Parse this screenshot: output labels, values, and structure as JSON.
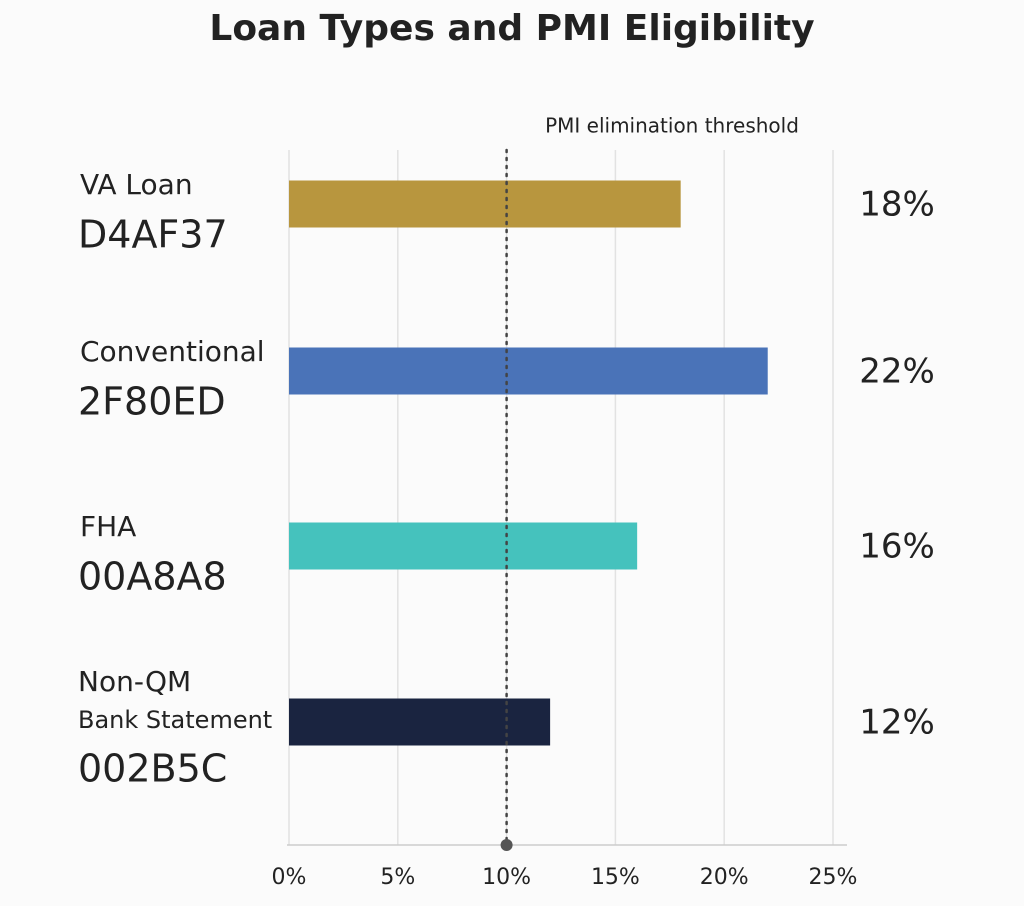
{
  "chart_data": {
    "type": "bar",
    "orientation": "horizontal",
    "title": "Loan Types and PMI Eligibility",
    "categories": [
      "VA Loan",
      "Conventional",
      "FHA",
      [
        "Non-QM",
        "Bank Statement"
      ]
    ],
    "color_codes": [
      "D4AF37",
      "2F80ED",
      "00A8A8",
      "002B5C"
    ],
    "colors": [
      "#b8963e",
      "#4a73b8",
      "#45c2bd",
      "#1a2440"
    ],
    "values": [
      18,
      22,
      16,
      12
    ],
    "value_labels": [
      "18%",
      "22%",
      "16%",
      "12%"
    ],
    "xlim": [
      0,
      25
    ],
    "xticks": [
      {
        "value": 0,
        "label": "0%"
      },
      {
        "value": 5,
        "label": "5%"
      },
      {
        "value": 10,
        "label": "10%"
      },
      {
        "value": 15,
        "label": "15%"
      },
      {
        "value": 20,
        "label": "20%"
      },
      {
        "value": 25,
        "label": "25%"
      }
    ],
    "grid": true,
    "threshold": {
      "value": 10,
      "label": "PMI elimination threshold"
    }
  }
}
